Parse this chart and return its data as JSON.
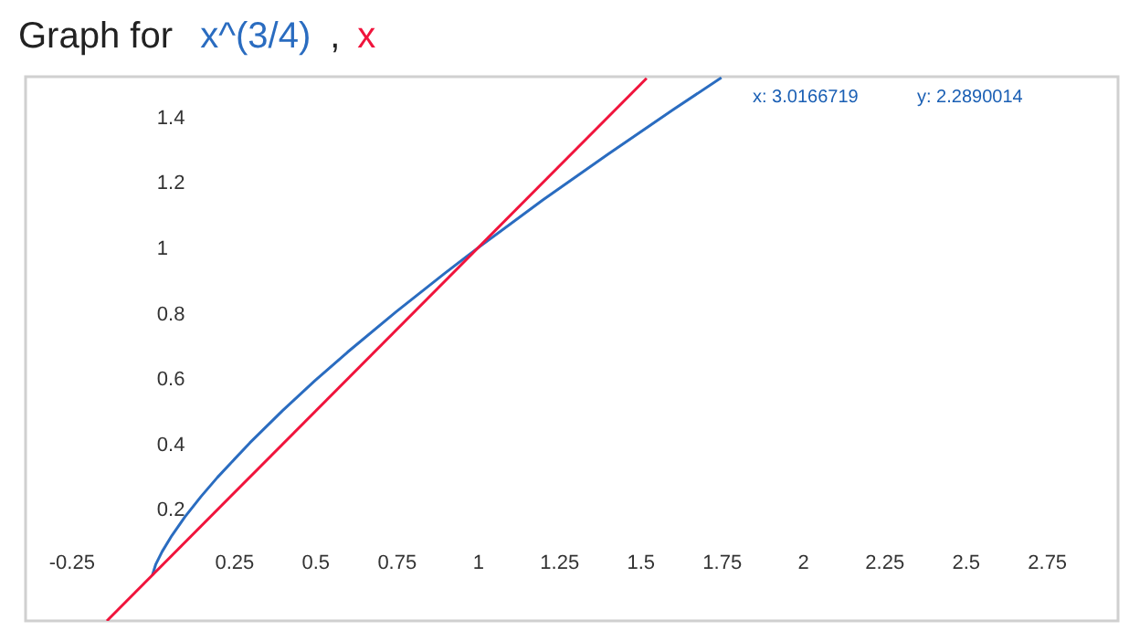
{
  "chart_data": {
    "type": "line",
    "title": "Graph for",
    "series": [
      {
        "name": "x^(3/4)",
        "color": "#2a6cc0",
        "x": [
          0,
          0.01,
          0.03,
          0.06,
          0.1,
          0.15,
          0.2,
          0.3,
          0.4,
          0.5,
          0.6,
          0.75,
          0.9,
          1,
          1.2,
          1.4,
          1.6,
          1.75
        ],
        "values": [
          0,
          0.032,
          0.072,
          0.121,
          0.178,
          0.241,
          0.299,
          0.405,
          0.503,
          0.595,
          0.682,
          0.806,
          0.924,
          1,
          1.147,
          1.287,
          1.423,
          1.522
        ]
      },
      {
        "name": "x",
        "color": "#f0143c",
        "x": [
          -0.14,
          1.52
        ],
        "values": [
          -0.14,
          1.52
        ]
      }
    ],
    "xlim": [
      -0.39,
      2.97
    ],
    "ylim": [
      -0.14,
      1.525
    ],
    "xticks": [
      -0.25,
      0.25,
      0.5,
      0.75,
      1,
      1.25,
      1.5,
      1.75,
      2,
      2.25,
      2.5,
      2.75
    ],
    "yticks": [
      0.2,
      0.4,
      0.6,
      0.8,
      1,
      1.2,
      1.4
    ],
    "annotations": [
      ",",
      "x: 3.0166719",
      "y: 2.2890014"
    ],
    "grid": false,
    "legend": "top left",
    "line_style": "solid",
    "marker": "none"
  }
}
